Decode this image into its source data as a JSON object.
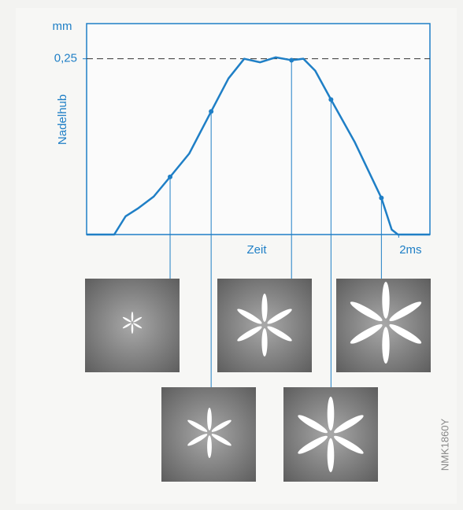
{
  "chart_data": {
    "type": "line",
    "y_label": "Nadelhub",
    "y_unit": "mm",
    "x_label": "Zeit",
    "source": "NMK1860Y",
    "x": [
      0,
      0.177,
      0.25,
      0.328,
      0.43,
      0.535,
      0.657,
      0.798,
      0.909,
      1.01,
      1.111,
      1.212,
      1.313,
      1.389,
      1.465,
      1.566,
      1.717,
      1.889,
      1.955,
      1.995,
      2.2
    ],
    "series": [
      {
        "color": "#1f7fc6",
        "values": [
          0,
          0,
          0.026,
          0.037,
          0.054,
          0.082,
          0.115,
          0.175,
          0.222,
          0.25,
          0.245,
          0.252,
          0.248,
          0.25,
          0.233,
          0.192,
          0.132,
          0.052,
          0.007,
          0,
          0
        ]
      }
    ],
    "xlim": [
      0,
      2.2
    ],
    "ylim": [
      0,
      0.3
    ],
    "xticks": [
      {
        "value": 2,
        "label": "2ms"
      }
    ],
    "yticks": [
      {
        "value": 0.25,
        "label": "0,25"
      }
    ],
    "hline": 0.25
  }
}
